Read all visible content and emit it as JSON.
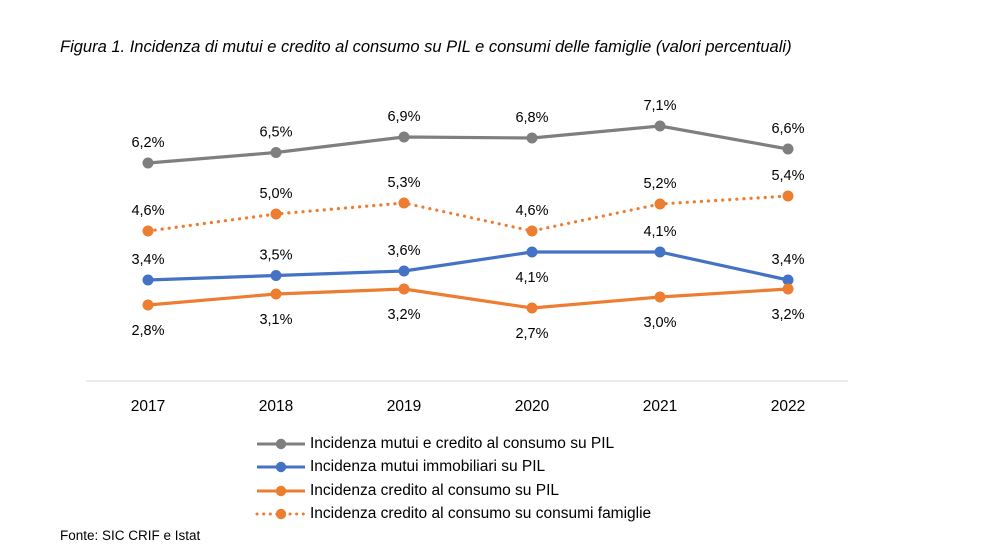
{
  "figure": {
    "title": "Figura 1. Incidenza di mutui e credito al consumo su PIL e consumi delle famiglie (valori percentuali)",
    "source": "Fonte: SIC CRIF e Istat"
  },
  "chart_data": {
    "type": "line",
    "title": "Figura 1. Incidenza di mutui e credito al consumo su PIL e consumi delle famiglie (valori percentuali)",
    "xlabel": "",
    "ylabel": "",
    "categories": [
      "2017",
      "2018",
      "2019",
      "2020",
      "2021",
      "2022"
    ],
    "grid": false,
    "legend_position": "bottom",
    "series": [
      {
        "name": "Incidenza mutui e credito al consumo su PIL",
        "values": [
          6.2,
          6.5,
          6.9,
          6.8,
          7.1,
          6.6
        ],
        "labels": [
          "6,2%",
          "6,5%",
          "6,9%",
          "6,8%",
          "7,1%",
          "6,6%"
        ],
        "color": "#7f7f7f",
        "style": "solid"
      },
      {
        "name": "Incidenza mutui immobiliari su PIL",
        "values": [
          3.4,
          3.5,
          3.6,
          4.1,
          4.1,
          3.4
        ],
        "labels": [
          "3,4%",
          "3,5%",
          "3,6%",
          "4,1%",
          "4,1%",
          "3,4%"
        ],
        "color": "#4472c4",
        "style": "solid"
      },
      {
        "name": "Incidenza credito al consumo su PIL",
        "values": [
          2.8,
          3.1,
          3.2,
          2.7,
          3.0,
          3.2
        ],
        "labels": [
          "2,8%",
          "3,1%",
          "3,2%",
          "2,7%",
          "3,0%",
          "3,2%"
        ],
        "color": "#ed7d31",
        "style": "solid"
      },
      {
        "name": "Incidenza credito al consumo su consumi famiglie",
        "values": [
          4.6,
          5.0,
          5.3,
          4.6,
          5.2,
          5.4
        ],
        "labels": [
          "4,6%",
          "5,0%",
          "5,3%",
          "4,6%",
          "5,2%",
          "5,4%"
        ],
        "color": "#ed7d31",
        "style": "dotted"
      }
    ]
  }
}
